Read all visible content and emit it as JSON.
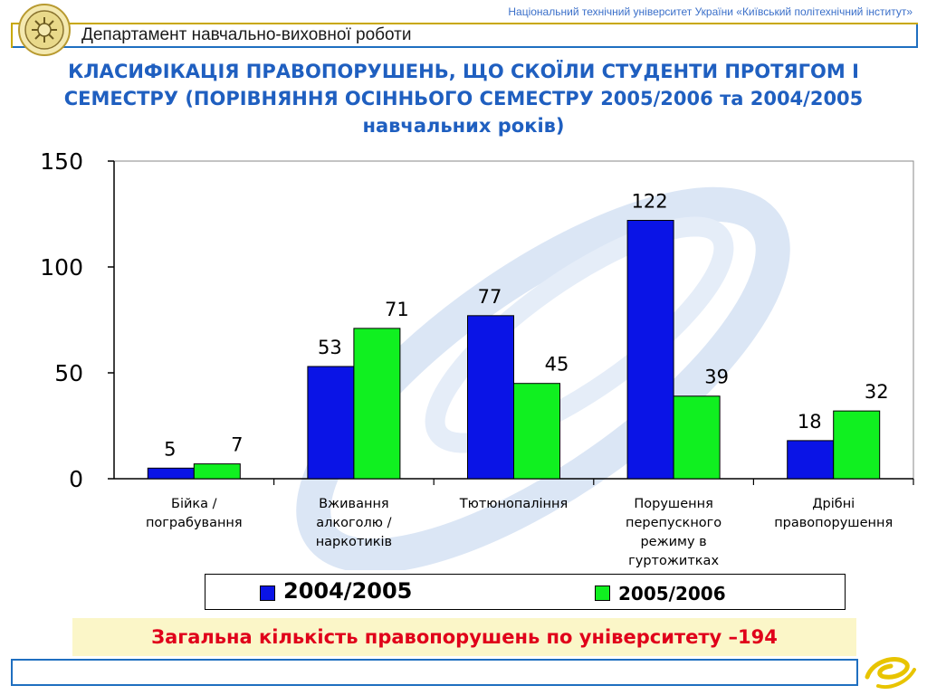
{
  "header": {
    "department": "Департамент навчально-виховної роботи",
    "university": "Національний технічний університет України «Київський політехнічний інститут»"
  },
  "icons": {
    "logo": "university-seal-icon",
    "footer_logo": "swirl-logo-icon"
  },
  "colors": {
    "series_2004": "#0a14e6",
    "series_2005": "#10f020",
    "title": "#1f5fc0",
    "total_text": "#e0001a",
    "frame": "#1f6fc0"
  },
  "summary": {
    "total": "Загальна кількість правопорушень по університету –194"
  },
  "chart_data": {
    "type": "bar",
    "title": "КЛАСИФІКАЦІЯ ПРАВОПОРУШЕНЬ, ЩО СКОЇЛИ СТУДЕНТИ ПРОТЯГОМ І СЕМЕСТРУ (ПОРІВНЯННЯ ОСІННЬОГО СЕМЕСТРУ 2005/2006 та 2004/2005 навчальних років)",
    "xlabel": "",
    "ylabel": "",
    "ylim": [
      0,
      150
    ],
    "yticks": [
      0,
      50,
      100,
      150
    ],
    "grid": false,
    "legend_position": "bottom",
    "categories": [
      [
        "Бійка /",
        "пограбування"
      ],
      [
        "Вживання",
        "алкоголю /",
        "наркотиків"
      ],
      [
        "Тютюнопаління"
      ],
      [
        "Порушення",
        "перепускного",
        "режиму в",
        "гуртожитках"
      ],
      [
        "Дрібні",
        "правопорушення"
      ]
    ],
    "series": [
      {
        "name": "2004/2005",
        "values": [
          5,
          53,
          77,
          122,
          18
        ],
        "color": "#0a14e6"
      },
      {
        "name": "2005/2006",
        "values": [
          7,
          71,
          45,
          39,
          32
        ],
        "color": "#10f020"
      }
    ]
  }
}
